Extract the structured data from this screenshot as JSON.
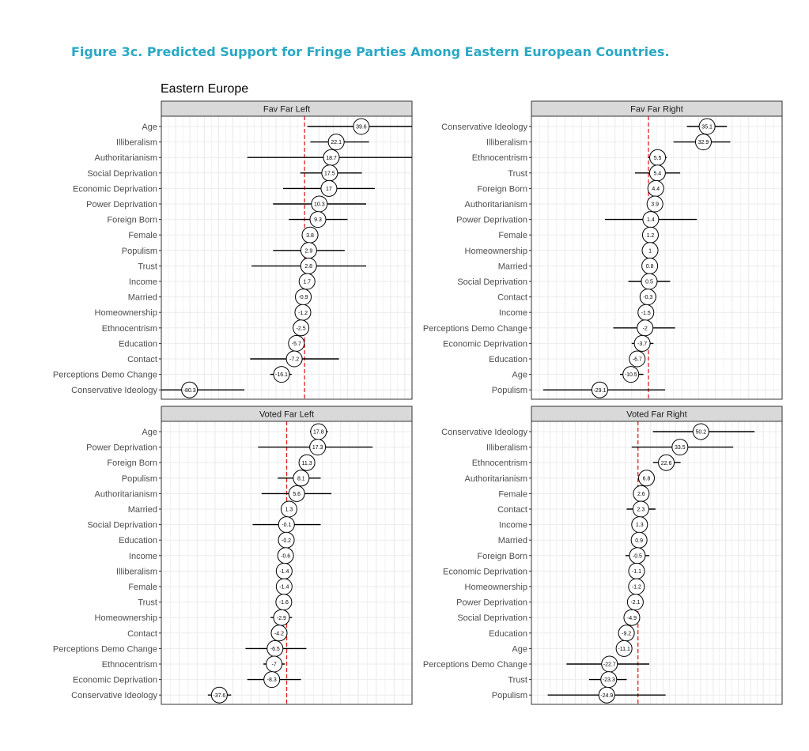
{
  "figure_title": "Figure 3c.  Predicted Support for Fringe Parties Among Eastern European Countries.",
  "plot_title": "Eastern Europe",
  "colors": {
    "title": "#2aa8c4",
    "reference_line": "#e02020",
    "strip": "#d9d9d9",
    "grid": "#ebebeb"
  },
  "chart_data": [
    {
      "type": "scatter",
      "title": "Fav Far Left",
      "xlim": [
        -100,
        75
      ],
      "reference_x": 0,
      "grid": true,
      "points": [
        {
          "label": "Age",
          "value": 39.6,
          "low": 2,
          "high": 77
        },
        {
          "label": "Illiberalism",
          "value": 22.1,
          "low": 4,
          "high": 45
        },
        {
          "label": "Authoritarianism",
          "value": 18.7,
          "low": -40,
          "high": 77
        },
        {
          "label": "Social Deprivation",
          "value": 17.5,
          "low": -3,
          "high": 40
        },
        {
          "label": "Economic Deprivation",
          "value": 17,
          "low": -15,
          "high": 49
        },
        {
          "label": "Power Deprivation",
          "value": 10.3,
          "low": -22,
          "high": 43
        },
        {
          "label": "Foreign Born",
          "value": 9.3,
          "low": -11,
          "high": 30
        },
        {
          "label": "Female",
          "value": 3.8,
          "low": 3.8,
          "high": 3.8
        },
        {
          "label": "Populism",
          "value": 2.9,
          "low": -22,
          "high": 28
        },
        {
          "label": "Trust",
          "value": 2.8,
          "low": -37,
          "high": 43
        },
        {
          "label": "Income",
          "value": 1.7,
          "low": 1.7,
          "high": 1.7
        },
        {
          "label": "Married",
          "value": -0.9,
          "low": -0.9,
          "high": -0.9
        },
        {
          "label": "Homeownership",
          "value": -1.2,
          "low": -1.2,
          "high": -1.2
        },
        {
          "label": "Ethnocentrism",
          "value": -2.5,
          "low": -2.5,
          "high": -2.5
        },
        {
          "label": "Education",
          "value": -5.7,
          "low": -5.7,
          "high": -5.7
        },
        {
          "label": "Contact",
          "value": -7.2,
          "low": -38,
          "high": 24
        },
        {
          "label": "Perceptions Demo Change",
          "value": -16.1,
          "low": -24,
          "high": -9
        },
        {
          "label": "Conservative Ideology",
          "value": -80.3,
          "low": -120,
          "high": -42
        }
      ]
    },
    {
      "type": "scatter",
      "title": "Fav Far Right",
      "xlim": [
        -70,
        80
      ],
      "reference_x": 0,
      "grid": true,
      "points": [
        {
          "label": "Conservative Ideology",
          "value": 35.1,
          "low": 23,
          "high": 47
        },
        {
          "label": "Illiberalism",
          "value": 32.9,
          "low": 15,
          "high": 49
        },
        {
          "label": "Ethnocentrism",
          "value": 5.5,
          "low": 0,
          "high": 11
        },
        {
          "label": "Trust",
          "value": 5.4,
          "low": -8,
          "high": 19
        },
        {
          "label": "Foreign Born",
          "value": 4.4,
          "low": 4.4,
          "high": 4.4
        },
        {
          "label": "Authoritarianism",
          "value": 3.9,
          "low": 3.9,
          "high": 3.9
        },
        {
          "label": "Power Deprivation",
          "value": 1.4,
          "low": -26,
          "high": 29
        },
        {
          "label": "Female",
          "value": 1.2,
          "low": 1.2,
          "high": 1.2
        },
        {
          "label": "Homeownership",
          "value": 1,
          "low": 1,
          "high": 1
        },
        {
          "label": "Married",
          "value": 0.8,
          "low": 0.8,
          "high": 0.8
        },
        {
          "label": "Social Deprivation",
          "value": 0.5,
          "low": -12,
          "high": 13
        },
        {
          "label": "Contact",
          "value": -0.3,
          "low": -0.3,
          "high": -0.3
        },
        {
          "label": "Income",
          "value": -1.5,
          "low": -1.5,
          "high": -1.5
        },
        {
          "label": "Perceptions Demo Change",
          "value": -2,
          "low": -21,
          "high": 16
        },
        {
          "label": "Economic Deprivation",
          "value": -3.7,
          "low": -10,
          "high": 3
        },
        {
          "label": "Education",
          "value": -6.7,
          "low": -6.7,
          "high": -6.7
        },
        {
          "label": "Age",
          "value": -10.5,
          "low": -17,
          "high": -3
        },
        {
          "label": "Populism",
          "value": -29.1,
          "low": -63,
          "high": 10
        }
      ]
    },
    {
      "type": "scatter",
      "title": "Voted Far Left",
      "xlim": [
        -70,
        70
      ],
      "reference_x": 0,
      "grid": true,
      "points": [
        {
          "label": "Age",
          "value": 17.8,
          "low": 13,
          "high": 23
        },
        {
          "label": "Power Deprivation",
          "value": 17.3,
          "low": -16,
          "high": 48
        },
        {
          "label": "Foreign Born",
          "value": 11.3,
          "low": 11.3,
          "high": 11.3
        },
        {
          "label": "Populism",
          "value": 8.1,
          "low": -5,
          "high": 19
        },
        {
          "label": "Authoritarianism",
          "value": 5.6,
          "low": -14,
          "high": 25
        },
        {
          "label": "Married",
          "value": 1.3,
          "low": 1.3,
          "high": 1.3
        },
        {
          "label": "Social Deprivation",
          "value": -0.1,
          "low": -19,
          "high": 19
        },
        {
          "label": "Education",
          "value": -0.2,
          "low": -0.2,
          "high": -0.2
        },
        {
          "label": "Income",
          "value": -0.6,
          "low": -0.6,
          "high": -0.6
        },
        {
          "label": "Illiberalism",
          "value": -1.4,
          "low": -1.4,
          "high": -1.4
        },
        {
          "label": "Female",
          "value": -1.4,
          "low": -1.4,
          "high": -1.4
        },
        {
          "label": "Trust",
          "value": -1.6,
          "low": -1.6,
          "high": -1.6
        },
        {
          "label": "Homeownership",
          "value": -2.9,
          "low": -9,
          "high": 3
        },
        {
          "label": "Contact",
          "value": -4.2,
          "low": -4.2,
          "high": -4.2
        },
        {
          "label": "Perceptions Demo Change",
          "value": -6.5,
          "low": -23,
          "high": 11
        },
        {
          "label": "Ethnocentrism",
          "value": -7,
          "low": -13,
          "high": -1
        },
        {
          "label": "Economic Deprivation",
          "value": -8.3,
          "low": -22,
          "high": 8
        },
        {
          "label": "Conservative Ideology",
          "value": -37.6,
          "low": -44,
          "high": -31
        }
      ]
    },
    {
      "type": "scatter",
      "title": "Voted Far Right",
      "xlim": [
        -85,
        115
      ],
      "reference_x": 0,
      "grid": true,
      "points": [
        {
          "label": "Conservative Ideology",
          "value": 50.2,
          "low": 12,
          "high": 93
        },
        {
          "label": "Illiberalism",
          "value": 33.5,
          "low": -5,
          "high": 76
        },
        {
          "label": "Ethnocentrism",
          "value": 22.6,
          "low": 12,
          "high": 34
        },
        {
          "label": "Authoritarianism",
          "value": 6.8,
          "low": 6.8,
          "high": 6.8
        },
        {
          "label": "Female",
          "value": 2.6,
          "low": 2.6,
          "high": 2.6
        },
        {
          "label": "Contact",
          "value": 2.3,
          "low": -9,
          "high": 14
        },
        {
          "label": "Income",
          "value": 1.3,
          "low": 1.3,
          "high": 1.3
        },
        {
          "label": "Married",
          "value": 0.9,
          "low": 0.9,
          "high": 0.9
        },
        {
          "label": "Foreign Born",
          "value": -0.5,
          "low": -10,
          "high": 9
        },
        {
          "label": "Economic Deprivation",
          "value": -1.1,
          "low": -1.1,
          "high": -1.1
        },
        {
          "label": "Homeownership",
          "value": -1.2,
          "low": -1.2,
          "high": -1.2
        },
        {
          "label": "Power Deprivation",
          "value": -2.1,
          "low": -2.1,
          "high": -2.1
        },
        {
          "label": "Social Deprivation",
          "value": -4.9,
          "low": -11,
          "high": 1
        },
        {
          "label": "Education",
          "value": -9.2,
          "low": -9.2,
          "high": -9.2
        },
        {
          "label": "Age",
          "value": -11.1,
          "low": -11.1,
          "high": -11.1
        },
        {
          "label": "Perceptions Demo Change",
          "value": -22.7,
          "low": -57,
          "high": 9
        },
        {
          "label": "Trust",
          "value": -23.3,
          "low": -39,
          "high": -9
        },
        {
          "label": "Populism",
          "value": -24.9,
          "low": -72,
          "high": 22
        }
      ]
    }
  ]
}
